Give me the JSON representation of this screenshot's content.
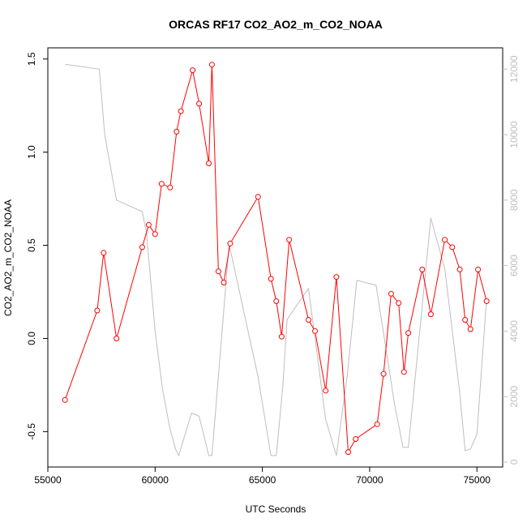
{
  "chart_data": {
    "type": "line",
    "title": "ORCAS RF17 CO2_AO2_m_CO2_NOAA",
    "xlabel": "UTC Seconds",
    "ylabel": "CO2_AO2_m_CO2_NOAA",
    "xlim": [
      55000,
      76200
    ],
    "ylim": [
      -0.69,
      1.56
    ],
    "y2lim": [
      -150,
      12650
    ],
    "x_ticks": [
      55000,
      60000,
      65000,
      70000,
      75000
    ],
    "y_ticks": [
      -0.5,
      0.0,
      0.5,
      1.0,
      1.5
    ],
    "y_tick_labels": [
      "-0.5",
      "0.0",
      "0.5",
      "1.0",
      "1.5"
    ],
    "y2_ticks": [
      0,
      2000,
      4000,
      6000,
      8000,
      10000,
      12000
    ],
    "grid": false,
    "colors": {
      "series": "#ff0000",
      "secondary": "#bebebe",
      "axis": "#000000"
    },
    "series": [
      {
        "axis": "left",
        "style": "line+points",
        "color": "#ff0000",
        "x": [
          55800,
          57300,
          57600,
          58200,
          59400,
          59700,
          60000,
          60300,
          60700,
          61000,
          61200,
          61750,
          62050,
          62500,
          62650,
          62950,
          63200,
          63500,
          64800,
          65400,
          65650,
          65900,
          66250,
          67150,
          67450,
          67950,
          68450,
          69000,
          69350,
          70350,
          70650,
          71000,
          71350,
          71600,
          71800,
          72450,
          72850,
          73500,
          73850,
          74200,
          74450,
          74700,
          75050,
          75450
        ],
        "y": [
          -0.33,
          0.15,
          0.46,
          0.0,
          0.49,
          0.61,
          0.56,
          0.83,
          0.81,
          1.11,
          1.22,
          1.44,
          1.26,
          0.94,
          1.47,
          0.36,
          0.3,
          0.51,
          0.76,
          0.32,
          0.2,
          0.01,
          0.53,
          0.1,
          0.04,
          -0.28,
          0.33,
          -0.61,
          -0.54,
          -0.46,
          -0.19,
          0.24,
          0.19,
          -0.18,
          0.03,
          0.37,
          0.13,
          0.53,
          0.49,
          0.37,
          0.1,
          0.05,
          0.37,
          0.2
        ]
      },
      {
        "axis": "right",
        "style": "line",
        "color": "#bebebe",
        "x": [
          55800,
          57400,
          57650,
          58200,
          59400,
          59600,
          60000,
          60350,
          60700,
          60950,
          61100,
          61700,
          62050,
          62500,
          62650,
          62850,
          63450,
          64800,
          65400,
          65650,
          65950,
          66150,
          66300,
          67150,
          67950,
          68450,
          68950,
          69400,
          70300,
          71150,
          71550,
          71800,
          72850,
          73500,
          74200,
          74450,
          74700,
          75000,
          75450
        ],
        "y": [
          12150,
          12000,
          10000,
          8000,
          7650,
          7000,
          4000,
          2200,
          1000,
          400,
          200,
          1500,
          1400,
          200,
          200,
          1800,
          6650,
          2600,
          200,
          200,
          2300,
          4350,
          4500,
          5300,
          1300,
          200,
          2600,
          5550,
          5400,
          1800,
          450,
          450,
          7450,
          5900,
          2100,
          350,
          400,
          850,
          5000
        ]
      }
    ]
  }
}
